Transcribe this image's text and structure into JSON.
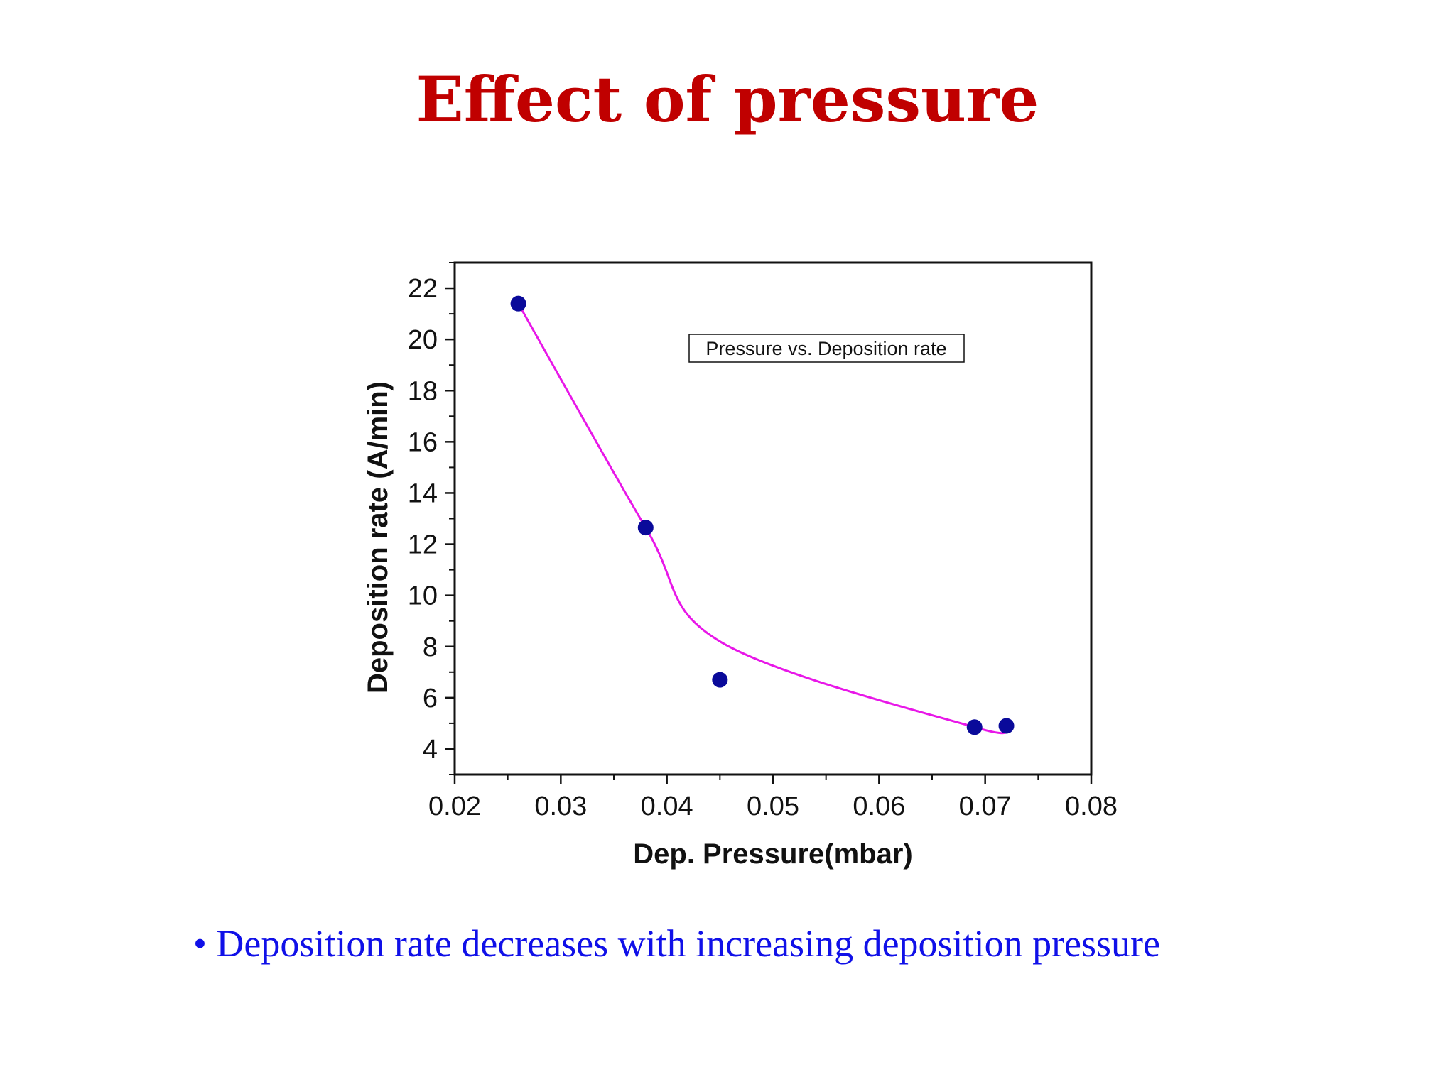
{
  "slide": {
    "title": "Effect of pressure",
    "bullet_marker": "•",
    "bullet_text": "Deposition rate decreases with increasing deposition pressure"
  },
  "colors": {
    "title": "#c00000",
    "bullet": "#1010e8",
    "curve": "#e817e8",
    "points": "#0a0a9a",
    "axes": "#111111"
  },
  "chart_data": {
    "type": "scatter",
    "title": "",
    "xlabel": "Dep. Pressure(mbar)",
    "ylabel": "Deposition rate (A/min)",
    "xlim": [
      0.02,
      0.08
    ],
    "ylim": [
      3,
      23
    ],
    "x_ticks": [
      "0.02",
      "0.03",
      "0.04",
      "0.05",
      "0.06",
      "0.07",
      "0.08"
    ],
    "y_ticks": [
      "4",
      "6",
      "8",
      "10",
      "12",
      "14",
      "16",
      "18",
      "20",
      "22"
    ],
    "legend": {
      "text": "Pressure vs. Deposition rate",
      "position": "top-right"
    },
    "grid": false,
    "series": [
      {
        "marker": "circle",
        "fit_curve": "smooth spline",
        "x": [
          0.026,
          0.038,
          0.045,
          0.069,
          0.072
        ],
        "y": [
          21.4,
          12.65,
          6.7,
          4.85,
          4.9
        ]
      }
    ]
  }
}
